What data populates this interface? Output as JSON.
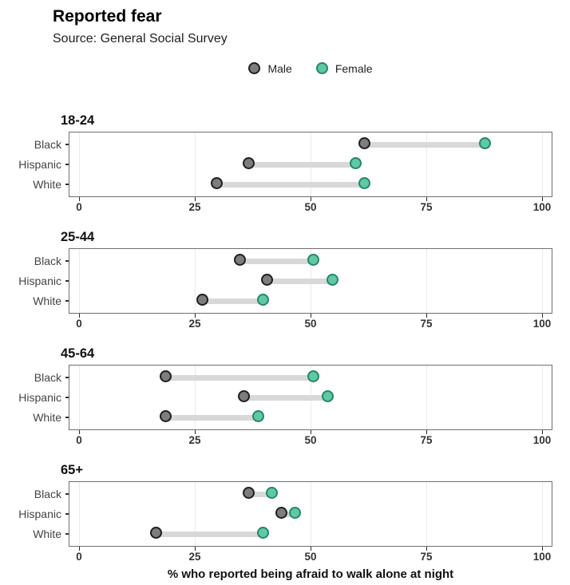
{
  "header": {
    "title": "Reported fear",
    "subtitle": "Source: General Social Survey"
  },
  "legend": [
    {
      "label": "Male",
      "fill": "#7d7d7d",
      "stroke": "#1f1f1f"
    },
    {
      "label": "Female",
      "fill": "#5ec9a4",
      "stroke": "#26866a"
    }
  ],
  "xlabel": "% who reported being afraid to walk alone at night",
  "colors": {
    "segment": "#d8d8d8",
    "gridline": "#ebebeb",
    "panel_border": "#6f6f6f"
  },
  "chart_data": {
    "type": "dumbbell",
    "title": "Reported fear",
    "subtitle": "Source: General Social Survey",
    "xlabel": "% who reported being afraid to walk alone at night",
    "xlim": [
      0,
      100
    ],
    "x_ticks": [
      0,
      25,
      50,
      75,
      100
    ],
    "grid": true,
    "legend_position": "top-center",
    "series": [
      "Male",
      "Female"
    ],
    "categories": [
      "Black",
      "Hispanic",
      "White"
    ],
    "panels": [
      {
        "title": "18-24",
        "rows": [
          {
            "category": "Black",
            "male": 62,
            "female": 88
          },
          {
            "category": "Hispanic",
            "male": 37,
            "female": 60
          },
          {
            "category": "White",
            "male": 30,
            "female": 62
          }
        ]
      },
      {
        "title": "25-44",
        "rows": [
          {
            "category": "Black",
            "male": 35,
            "female": 51
          },
          {
            "category": "Hispanic",
            "male": 41,
            "female": 55
          },
          {
            "category": "White",
            "male": 27,
            "female": 40
          }
        ]
      },
      {
        "title": "45-64",
        "rows": [
          {
            "category": "Black",
            "male": 19,
            "female": 51
          },
          {
            "category": "Hispanic",
            "male": 36,
            "female": 54
          },
          {
            "category": "White",
            "male": 19,
            "female": 39
          }
        ]
      },
      {
        "title": "65+",
        "rows": [
          {
            "category": "Black",
            "male": 37,
            "female": 42
          },
          {
            "category": "Hispanic",
            "male": 44,
            "female": 47
          },
          {
            "category": "White",
            "male": 17,
            "female": 40
          }
        ]
      }
    ]
  }
}
